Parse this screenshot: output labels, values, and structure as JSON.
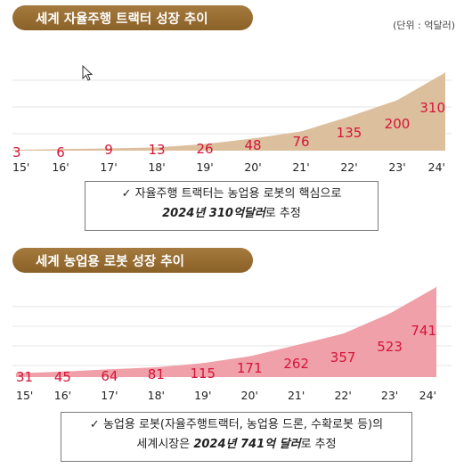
{
  "unit_label": "(단위 : 억달러)",
  "section1": {
    "title": "세계 자율주행 트랙터 성장 추이",
    "note": {
      "check": "✓",
      "line1": "자율주행 트랙터는 농업용 로봇의 핵심으로",
      "emph": "2024년 310억달러",
      "tail": "로 추정"
    }
  },
  "section2": {
    "title": "세계 농업용 로봇 성장 추이",
    "note": {
      "check": "✓",
      "line1": "농업용 로봇(자율주행트랙터, 농업용 드론, 수확로봇 등)의",
      "prefix": "세계시장은 ",
      "emph": "2024년 741억 달러",
      "tail": "로 추정"
    }
  },
  "colors": {
    "badge": "#96692f",
    "area1": "#dcbf9d",
    "area2": "#f0a0a8",
    "label": "#d4143a",
    "grid": "#e6e6e6"
  },
  "chart_data": [
    {
      "type": "area",
      "title": "세계 자율주행 트랙터 성장 추이",
      "categories": [
        "15'",
        "16'",
        "17'",
        "18'",
        "19'",
        "20'",
        "21'",
        "22'",
        "23'",
        "24'"
      ],
      "values": [
        3,
        6,
        9,
        13,
        26,
        48,
        76,
        135,
        200,
        310
      ],
      "ylim": [
        0,
        350
      ],
      "grid": true
    },
    {
      "type": "area",
      "title": "세계 농업용 로봇 성장 추이",
      "categories": [
        "15'",
        "16'",
        "17'",
        "18'",
        "19'",
        "20'",
        "21'",
        "22'",
        "23'",
        "24'"
      ],
      "values": [
        31,
        45,
        64,
        81,
        115,
        171,
        262,
        357,
        523,
        741
      ],
      "ylim": [
        0,
        800
      ],
      "grid": true
    }
  ]
}
